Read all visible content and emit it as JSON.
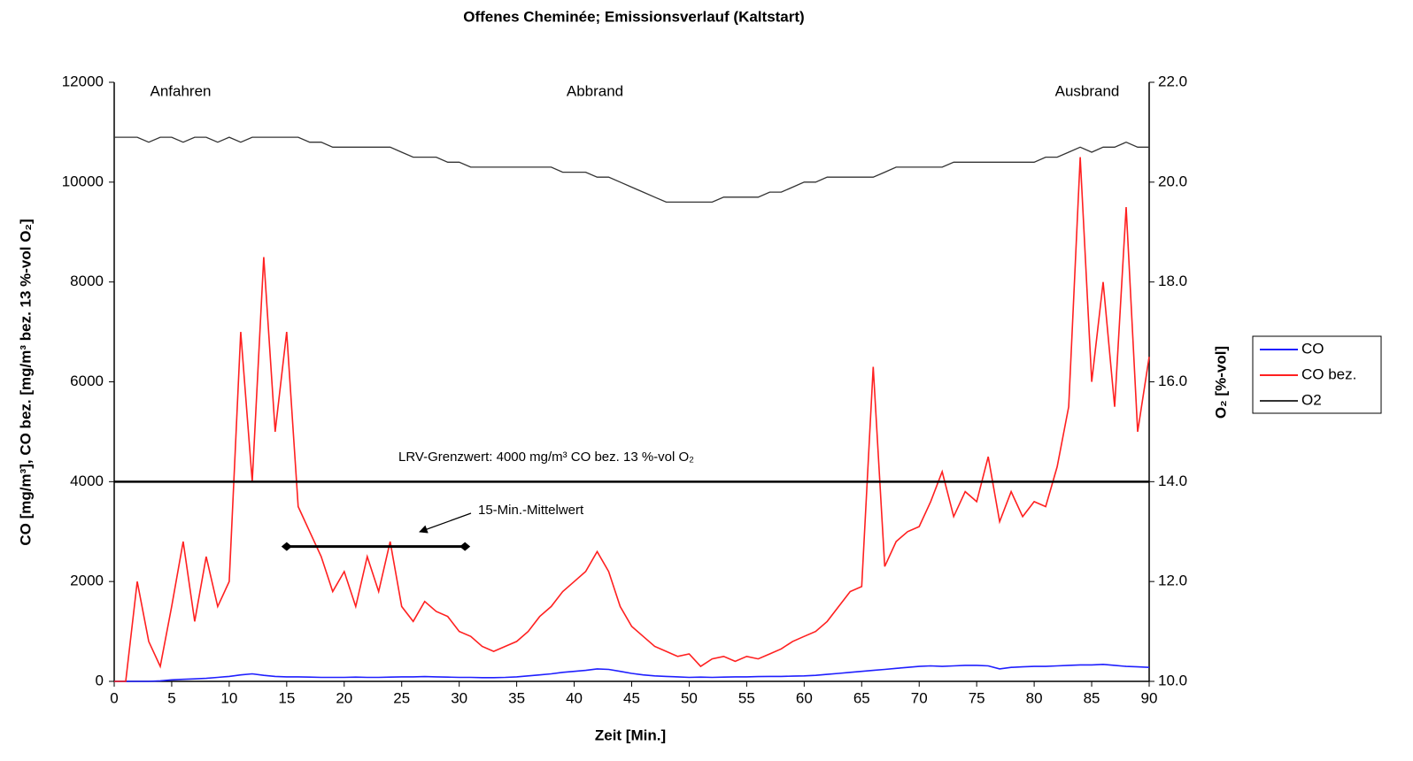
{
  "chart_data": {
    "type": "line",
    "title": "Offenes Cheminée; Emissionsverlauf (Kaltstart)",
    "x_label": "Zeit [Min.]",
    "y_label": "CO [mg/m³], CO bez. [mg/m³ bez. 13 %-vol O₂]",
    "y2_label": "O₂ [%-vol]",
    "annotations": [
      "Anfahren",
      "Abbrand",
      "Ausbrand"
    ],
    "limit_label": "LRV-Grenzwert: 4000 mg/m³ CO bez. 13 %-vol O₂",
    "limit": 4000,
    "mean_label": "15-Min.-Mittelwert",
    "mean_segment": {
      "x": [
        15,
        30.5
      ],
      "value": 2700
    },
    "x": [
      0,
      1,
      2,
      3,
      4,
      5,
      6,
      7,
      8,
      9,
      10,
      11,
      12,
      13,
      14,
      15,
      16,
      17,
      18,
      19,
      20,
      21,
      22,
      23,
      24,
      25,
      26,
      27,
      28,
      29,
      30,
      31,
      32,
      33,
      34,
      35,
      36,
      37,
      38,
      39,
      40,
      41,
      42,
      43,
      44,
      45,
      46,
      47,
      48,
      49,
      50,
      51,
      52,
      53,
      54,
      55,
      56,
      57,
      58,
      59,
      60,
      61,
      62,
      63,
      64,
      65,
      66,
      67,
      68,
      69,
      70,
      71,
      72,
      73,
      74,
      75,
      76,
      77,
      78,
      79,
      80,
      81,
      82,
      83,
      84,
      85,
      86,
      87,
      88,
      89,
      90
    ],
    "series": [
      {
        "name": "CO",
        "color": "#1f1fff",
        "values": [
          0,
          0,
          0,
          0,
          10,
          30,
          40,
          50,
          60,
          80,
          100,
          130,
          150,
          120,
          100,
          90,
          90,
          85,
          80,
          80,
          80,
          85,
          80,
          80,
          85,
          90,
          90,
          95,
          90,
          85,
          80,
          80,
          75,
          75,
          80,
          90,
          110,
          130,
          150,
          180,
          200,
          220,
          250,
          240,
          200,
          160,
          130,
          110,
          100,
          90,
          80,
          85,
          80,
          85,
          90,
          90,
          95,
          100,
          100,
          105,
          110,
          120,
          140,
          160,
          180,
          200,
          220,
          240,
          260,
          280,
          300,
          310,
          300,
          310,
          320,
          320,
          310,
          250,
          280,
          290,
          300,
          300,
          310,
          320,
          330,
          330,
          340,
          320,
          300,
          290,
          280
        ]
      },
      {
        "name": "CO bez.",
        "color": "#ff2020",
        "values": [
          0,
          0,
          2000,
          800,
          300,
          1500,
          2800,
          1200,
          2500,
          1500,
          2000,
          7000,
          4000,
          8500,
          5000,
          7000,
          3500,
          3000,
          2500,
          1800,
          2200,
          1500,
          2500,
          1800,
          2800,
          1500,
          1200,
          1600,
          1400,
          1300,
          1000,
          900,
          700,
          600,
          700,
          800,
          1000,
          1300,
          1500,
          1800,
          2000,
          2200,
          2600,
          2200,
          1500,
          1100,
          900,
          700,
          600,
          500,
          550,
          300,
          450,
          500,
          400,
          500,
          450,
          550,
          650,
          800,
          900,
          1000,
          1200,
          1500,
          1800,
          1900,
          6300,
          2300,
          2800,
          3000,
          3100,
          3600,
          4200,
          3300,
          3800,
          3600,
          4500,
          3200,
          3800,
          3300,
          3600,
          3500,
          4300,
          5500,
          10500,
          6000,
          8000,
          5500,
          9500,
          5000,
          6500
        ]
      },
      {
        "name": "O2",
        "color": "#333333",
        "axis": "y2",
        "values": [
          20.9,
          20.9,
          20.9,
          20.8,
          20.9,
          20.9,
          20.8,
          20.9,
          20.9,
          20.8,
          20.9,
          20.8,
          20.9,
          20.9,
          20.9,
          20.9,
          20.9,
          20.8,
          20.8,
          20.7,
          20.7,
          20.7,
          20.7,
          20.7,
          20.7,
          20.6,
          20.5,
          20.5,
          20.5,
          20.4,
          20.4,
          20.3,
          20.3,
          20.3,
          20.3,
          20.3,
          20.3,
          20.3,
          20.3,
          20.2,
          20.2,
          20.2,
          20.1,
          20.1,
          20.0,
          19.9,
          19.8,
          19.7,
          19.6,
          19.6,
          19.6,
          19.6,
          19.6,
          19.7,
          19.7,
          19.7,
          19.7,
          19.8,
          19.8,
          19.9,
          20.0,
          20.0,
          20.1,
          20.1,
          20.1,
          20.1,
          20.1,
          20.2,
          20.3,
          20.3,
          20.3,
          20.3,
          20.3,
          20.4,
          20.4,
          20.4,
          20.4,
          20.4,
          20.4,
          20.4,
          20.4,
          20.5,
          20.5,
          20.6,
          20.7,
          20.6,
          20.7,
          20.7,
          20.8,
          20.7,
          20.7
        ]
      }
    ],
    "xlim": [
      0,
      90
    ],
    "xticks": [
      0,
      5,
      10,
      15,
      20,
      25,
      30,
      35,
      40,
      45,
      50,
      55,
      60,
      65,
      70,
      75,
      80,
      85,
      90
    ],
    "ylim": [
      0,
      12000
    ],
    "yticks": [
      0,
      2000,
      4000,
      6000,
      8000,
      10000,
      12000
    ],
    "y2lim": [
      10,
      22
    ],
    "y2ticks": [
      {
        "value": 10,
        "label": "10.0"
      },
      {
        "value": 12,
        "label": "12.0"
      },
      {
        "value": 14,
        "label": "14.0"
      },
      {
        "value": 16,
        "label": "16.0"
      },
      {
        "value": 18,
        "label": "18.0"
      },
      {
        "value": 20,
        "label": "20.0"
      },
      {
        "value": 22,
        "label": "22.0"
      }
    ],
    "grid": false,
    "legend": "right"
  }
}
